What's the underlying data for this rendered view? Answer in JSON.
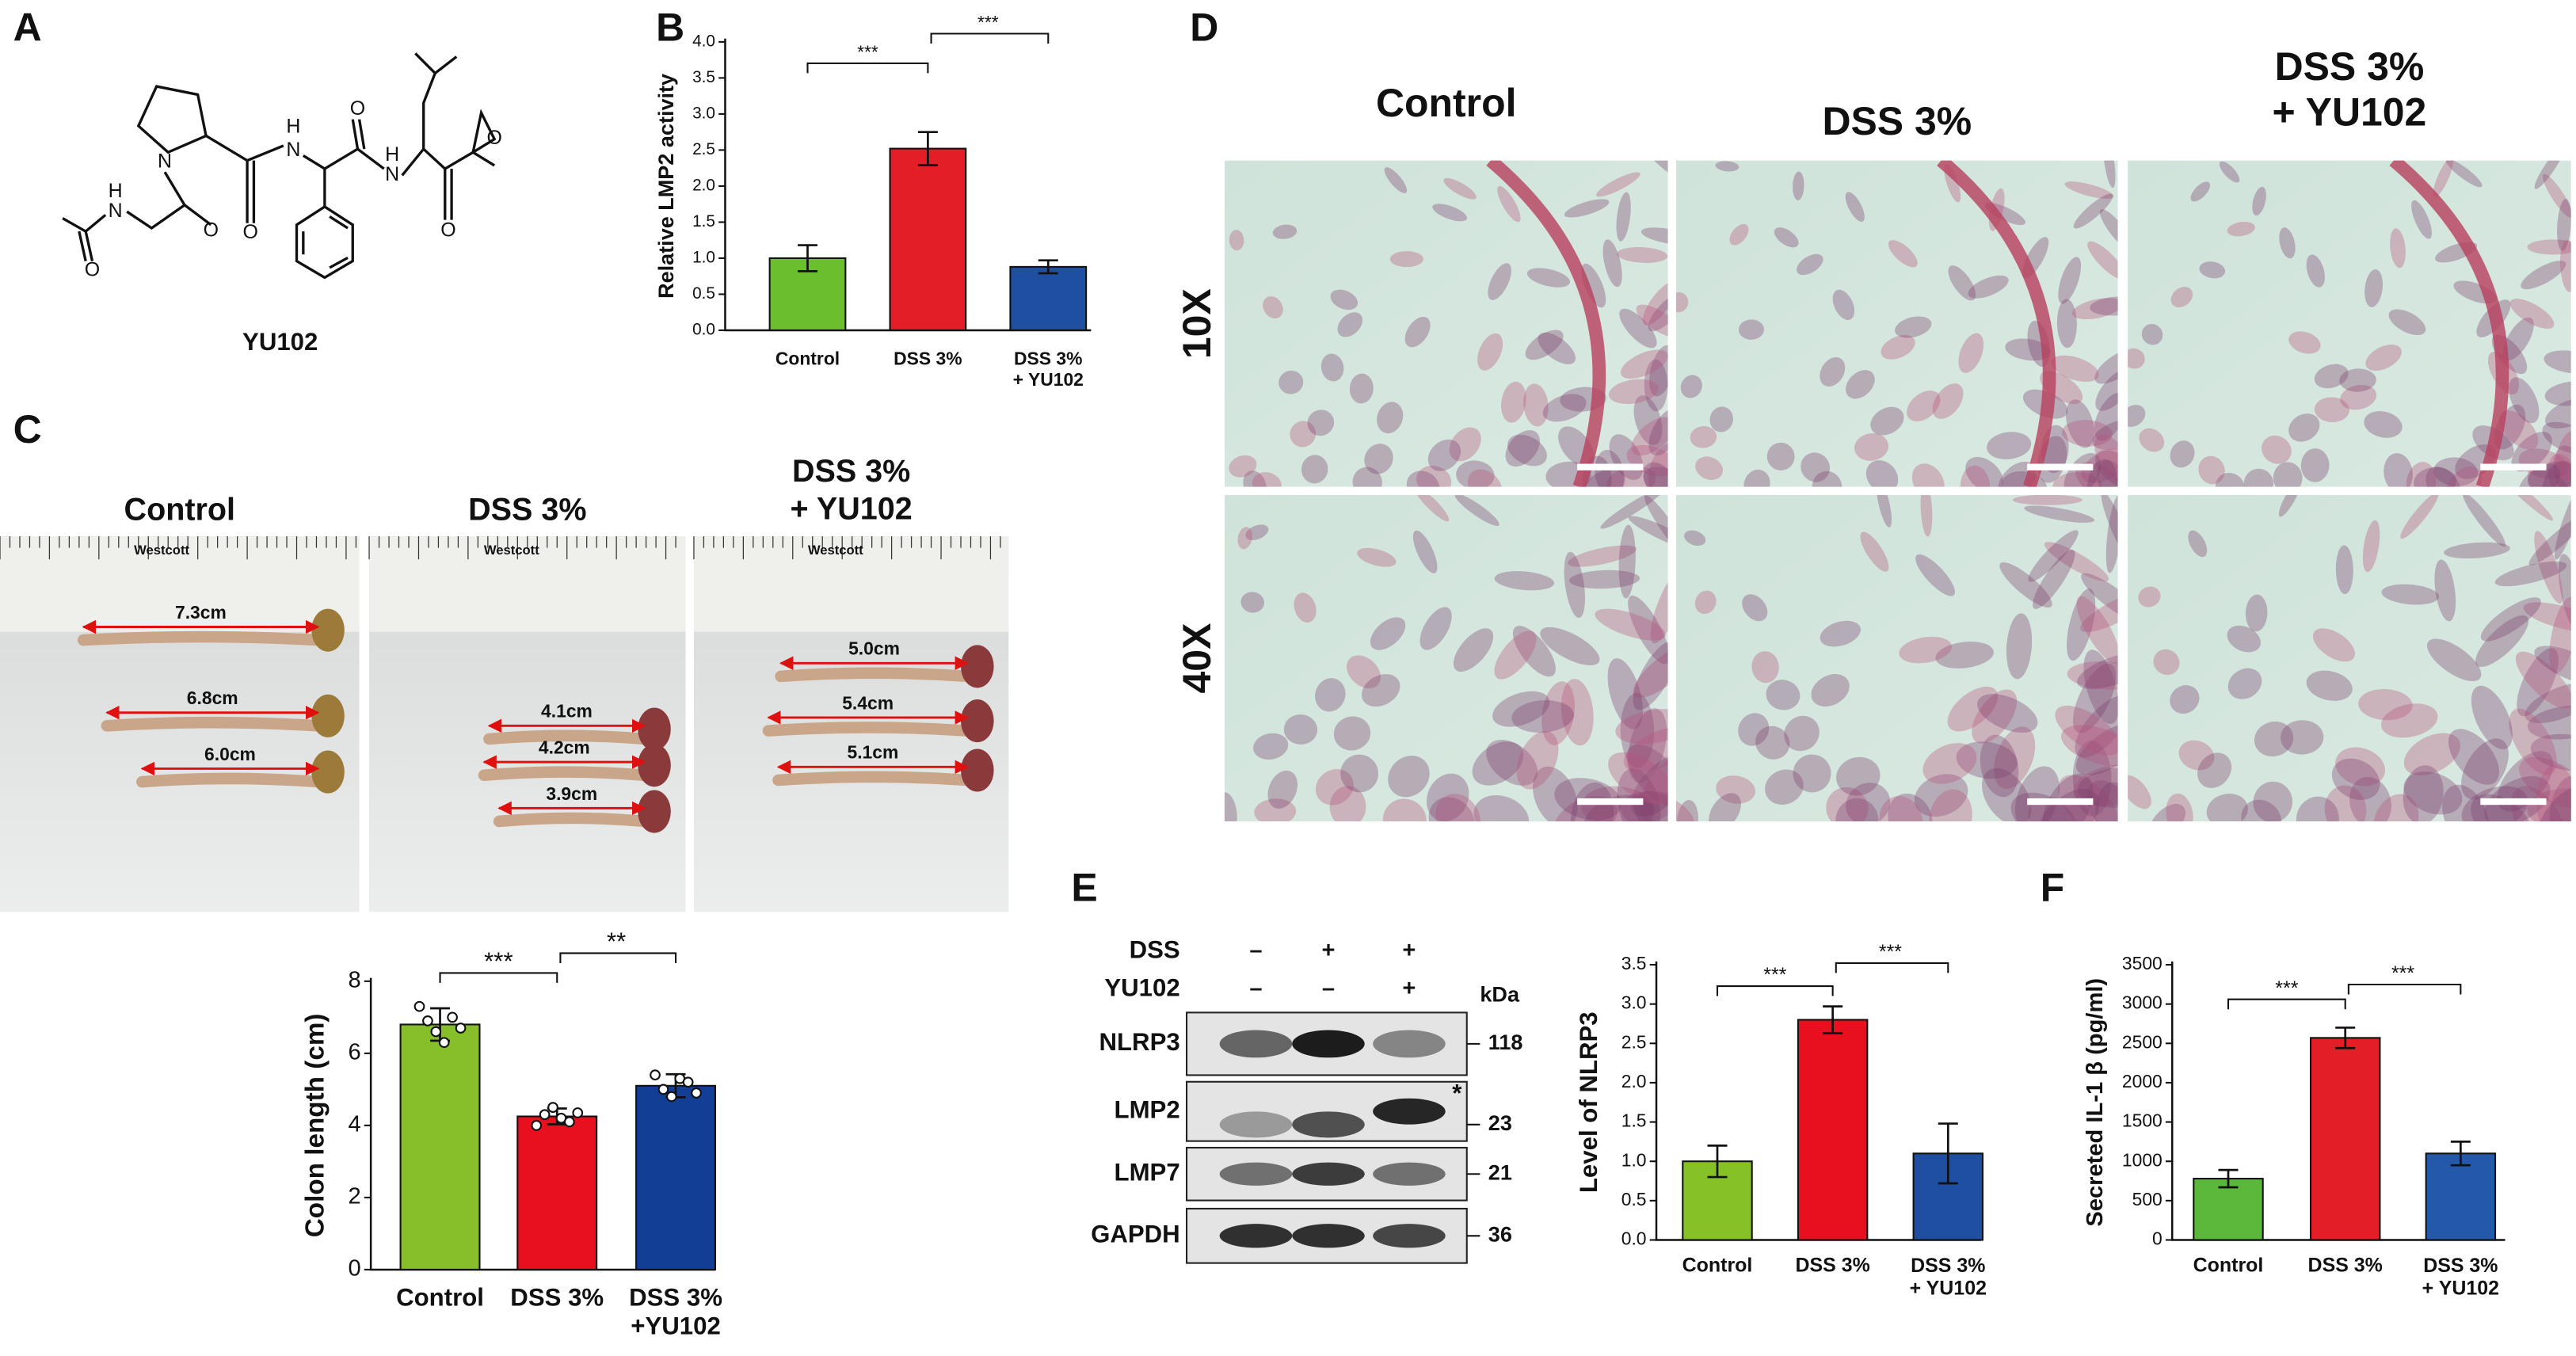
{
  "panel_labels": [
    "A",
    "B",
    "C",
    "D",
    "E",
    "F"
  ],
  "structure": {
    "name": "YU102",
    "atoms": [
      "N",
      "H",
      "N",
      "O",
      "H",
      "N",
      "O",
      "O",
      "O",
      "O",
      "H",
      "N",
      "O"
    ]
  },
  "photos": {
    "headers": [
      "Control",
      "DSS 3%",
      "DSS 3%\n+ YU102"
    ],
    "ruler_brand": "Westcott",
    "lengths": [
      [
        "7.3cm",
        "6.8cm",
        "6.0cm"
      ],
      [
        "4.1cm",
        "4.2cm",
        "3.9cm"
      ],
      [
        "5.0cm",
        "5.4cm",
        "5.1cm"
      ]
    ]
  },
  "histology": {
    "columns": [
      "Control",
      "DSS 3%",
      "DSS 3%\n+ YU102"
    ],
    "rows": [
      "10X",
      "40X"
    ]
  },
  "blot": {
    "treatments": [
      {
        "name": "DSS",
        "marks": [
          "–",
          "+",
          "+"
        ]
      },
      {
        "name": "YU102",
        "marks": [
          "–",
          "–",
          "+"
        ]
      }
    ],
    "unit": "kDa",
    "marker": "*",
    "bands": [
      {
        "name": "NLRP3",
        "size": 118
      },
      {
        "name": "LMP2",
        "size": 23
      },
      {
        "name": "LMP7",
        "size": 21
      },
      {
        "name": "GAPDH",
        "size": 36
      }
    ]
  },
  "chart_data": [
    {
      "type": "bar",
      "ylabel": "Relative LMP2 activity",
      "categories": [
        "Control",
        "DSS 3%",
        "DSS 3%\n+ YU102"
      ],
      "values": [
        1.0,
        2.52,
        0.88
      ],
      "errors": [
        0.18,
        0.23,
        0.09
      ],
      "colors": [
        "#6cbf2c",
        "#e41e26",
        "#1e4fa0"
      ],
      "ylim": [
        0,
        4
      ],
      "yticks": [
        {
          "value": 0,
          "label": "0.0"
        },
        {
          "value": 0.5,
          "label": "0.5"
        },
        {
          "value": 1,
          "label": "1.0"
        },
        {
          "value": 1.5,
          "label": "1.5"
        },
        {
          "value": 2,
          "label": "2.0"
        },
        {
          "value": 2.5,
          "label": "2.5"
        },
        {
          "value": 3,
          "label": "3.0"
        },
        {
          "value": 3.5,
          "label": "3.5"
        },
        {
          "value": 4,
          "label": "4.0"
        }
      ],
      "significance": [
        "***",
        "***"
      ]
    },
    {
      "type": "bar",
      "ylabel": "Colon length (cm)",
      "categories": [
        "Control",
        "DSS 3%",
        "DSS 3%\n+YU102"
      ],
      "values": [
        6.8,
        4.25,
        5.1
      ],
      "errors": [
        0.45,
        0.22,
        0.32
      ],
      "colors": [
        "#86bf2a",
        "#e8101e",
        "#123e96"
      ],
      "points": [
        [
          7.3,
          6.9,
          6.6,
          6.3,
          7.0,
          6.7
        ],
        [
          4.0,
          4.3,
          4.5,
          4.2,
          4.1,
          4.35
        ],
        [
          5.4,
          5.0,
          4.8,
          5.3,
          5.2,
          4.9
        ]
      ],
      "ylim": [
        0,
        8
      ],
      "yticks": [
        0,
        2,
        4,
        6,
        8
      ],
      "significance": [
        "***",
        "**"
      ]
    },
    {
      "type": "bar",
      "ylabel": "Level of NLRP3",
      "categories": [
        "Control",
        "DSS 3%",
        "DSS 3%\n+ YU102"
      ],
      "values": [
        1.0,
        2.8,
        1.1
      ],
      "errors": [
        0.2,
        0.17,
        0.38
      ],
      "colors": [
        "#86c226",
        "#e8101e",
        "#1e4fa0"
      ],
      "ylim": [
        0,
        3.5
      ],
      "yticks": [
        {
          "value": 0,
          "label": "0.0"
        },
        {
          "value": 0.5,
          "label": "0.5"
        },
        {
          "value": 1,
          "label": "1.0"
        },
        {
          "value": 1.5,
          "label": "1.5"
        },
        {
          "value": 2,
          "label": "2.0"
        },
        {
          "value": 2.5,
          "label": "2.5"
        },
        {
          "value": 3,
          "label": "3.0"
        },
        {
          "value": 3.5,
          "label": "3.5"
        }
      ],
      "significance": [
        "***",
        "***"
      ]
    },
    {
      "type": "bar",
      "ylabel": "Secreted IL-1 β (pg/ml)",
      "categories": [
        "Control",
        "DSS 3%",
        "DSS 3%\n+ YU102"
      ],
      "values": [
        780,
        2570,
        1100
      ],
      "errors": [
        110,
        130,
        150
      ],
      "colors": [
        "#5cb83a",
        "#e41e26",
        "#2458a8"
      ],
      "ylim": [
        0,
        3500
      ],
      "yticks": [
        0,
        500,
        1000,
        1500,
        2000,
        2500,
        3000,
        3500
      ],
      "significance": [
        "***",
        "***"
      ]
    }
  ]
}
